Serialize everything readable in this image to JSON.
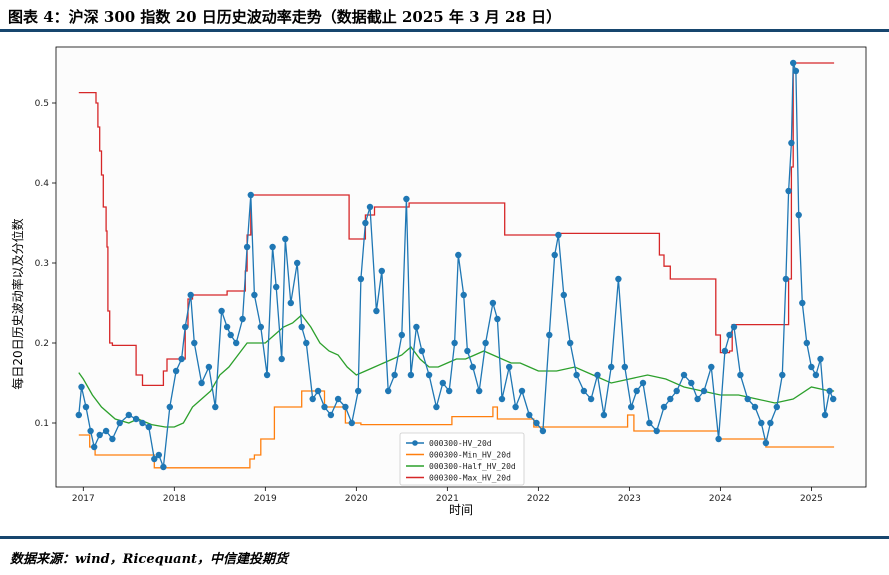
{
  "header": {
    "title": "图表 4：沪深 300 指数 20 日历史波动率走势（数据截止 2025 年 3 月 28 日）"
  },
  "footer": {
    "source": "数据来源：wind，Ricequant，中信建投期货"
  },
  "chart_data": {
    "type": "line",
    "xlabel": "时间",
    "ylabel": "每日20日历史波动率以及分位数",
    "x_ticks": [
      "2017",
      "2018",
      "2019",
      "2020",
      "2021",
      "2022",
      "2023",
      "2024",
      "2025"
    ],
    "y_ticks": [
      "0.1",
      "0.2",
      "0.3",
      "0.4",
      "0.5"
    ],
    "xlim": [
      2016.7,
      2025.6
    ],
    "ylim": [
      0.02,
      0.57
    ],
    "legend_position": "lower-center",
    "grid": false,
    "series": [
      {
        "name": "000300-HV_20d",
        "color": "#1f77b4",
        "marker": "circle",
        "x": [
          2016.95,
          2016.98,
          2017.03,
          2017.08,
          2017.12,
          2017.18,
          2017.25,
          2017.32,
          2017.4,
          2017.5,
          2017.58,
          2017.65,
          2017.72,
          2017.78,
          2017.83,
          2017.88,
          2017.95,
          2018.02,
          2018.08,
          2018.12,
          2018.18,
          2018.22,
          2018.3,
          2018.38,
          2018.45,
          2018.52,
          2018.58,
          2018.62,
          2018.68,
          2018.75,
          2018.8,
          2018.84,
          2018.88,
          2018.95,
          2019.02,
          2019.08,
          2019.12,
          2019.18,
          2019.22,
          2019.28,
          2019.35,
          2019.4,
          2019.45,
          2019.52,
          2019.58,
          2019.65,
          2019.72,
          2019.8,
          2019.88,
          2019.95,
          2020.02,
          2020.05,
          2020.1,
          2020.15,
          2020.22,
          2020.28,
          2020.35,
          2020.42,
          2020.5,
          2020.55,
          2020.6,
          2020.66,
          2020.72,
          2020.8,
          2020.88,
          2020.95,
          2021.02,
          2021.08,
          2021.12,
          2021.18,
          2021.22,
          2021.28,
          2021.35,
          2021.42,
          2021.5,
          2021.55,
          2021.6,
          2021.68,
          2021.75,
          2021.82,
          2021.9,
          2021.98,
          2022.05,
          2022.12,
          2022.18,
          2022.22,
          2022.28,
          2022.35,
          2022.42,
          2022.5,
          2022.58,
          2022.65,
          2022.72,
          2022.8,
          2022.88,
          2022.95,
          2023.02,
          2023.08,
          2023.15,
          2023.22,
          2023.3,
          2023.38,
          2023.45,
          2023.52,
          2023.6,
          2023.68,
          2023.75,
          2023.82,
          2023.9,
          2023.98,
          2024.05,
          2024.1,
          2024.15,
          2024.22,
          2024.3,
          2024.38,
          2024.45,
          2024.5,
          2024.55,
          2024.62,
          2024.68,
          2024.72,
          2024.75,
          2024.78,
          2024.8,
          2024.83,
          2024.86,
          2024.9,
          2024.95,
          2025.0,
          2025.05,
          2025.1,
          2025.15,
          2025.2,
          2025.24
        ],
        "y": [
          0.11,
          0.145,
          0.12,
          0.09,
          0.07,
          0.085,
          0.09,
          0.08,
          0.1,
          0.11,
          0.105,
          0.1,
          0.095,
          0.055,
          0.06,
          0.045,
          0.12,
          0.165,
          0.18,
          0.22,
          0.26,
          0.2,
          0.15,
          0.17,
          0.12,
          0.24,
          0.22,
          0.21,
          0.2,
          0.23,
          0.32,
          0.385,
          0.26,
          0.22,
          0.16,
          0.32,
          0.27,
          0.18,
          0.33,
          0.25,
          0.3,
          0.22,
          0.2,
          0.13,
          0.14,
          0.12,
          0.11,
          0.13,
          0.12,
          0.1,
          0.14,
          0.28,
          0.35,
          0.37,
          0.24,
          0.29,
          0.14,
          0.16,
          0.21,
          0.38,
          0.16,
          0.22,
          0.19,
          0.16,
          0.12,
          0.15,
          0.14,
          0.2,
          0.31,
          0.26,
          0.19,
          0.17,
          0.14,
          0.2,
          0.25,
          0.23,
          0.13,
          0.17,
          0.12,
          0.14,
          0.11,
          0.1,
          0.09,
          0.21,
          0.31,
          0.335,
          0.26,
          0.2,
          0.16,
          0.14,
          0.13,
          0.16,
          0.11,
          0.17,
          0.28,
          0.17,
          0.12,
          0.14,
          0.15,
          0.1,
          0.09,
          0.12,
          0.13,
          0.14,
          0.16,
          0.15,
          0.13,
          0.14,
          0.17,
          0.08,
          0.19,
          0.21,
          0.22,
          0.16,
          0.13,
          0.12,
          0.1,
          0.075,
          0.1,
          0.12,
          0.16,
          0.28,
          0.39,
          0.45,
          0.55,
          0.54,
          0.36,
          0.25,
          0.2,
          0.17,
          0.16,
          0.18,
          0.11,
          0.14,
          0.13
        ]
      },
      {
        "name": "000300-Min_HV_20d",
        "color": "#ff7f0e",
        "steps": [
          [
            2016.95,
            0.085
          ],
          [
            2017.07,
            0.07
          ],
          [
            2017.13,
            0.06
          ],
          [
            2017.75,
            0.06
          ],
          [
            2017.78,
            0.044
          ],
          [
            2018.8,
            0.044
          ],
          [
            2018.83,
            0.055
          ],
          [
            2018.88,
            0.06
          ],
          [
            2018.95,
            0.08
          ],
          [
            2019.1,
            0.12
          ],
          [
            2019.4,
            0.14
          ],
          [
            2019.65,
            0.12
          ],
          [
            2019.88,
            0.1
          ],
          [
            2020.0,
            0.1
          ],
          [
            2020.05,
            0.098
          ],
          [
            2021.0,
            0.098
          ],
          [
            2021.05,
            0.108
          ],
          [
            2021.45,
            0.108
          ],
          [
            2021.5,
            0.12
          ],
          [
            2021.55,
            0.105
          ],
          [
            2021.88,
            0.105
          ],
          [
            2021.95,
            0.095
          ],
          [
            2022.95,
            0.095
          ],
          [
            2022.98,
            0.11
          ],
          [
            2023.05,
            0.09
          ],
          [
            2023.98,
            0.08
          ],
          [
            2024.45,
            0.08
          ],
          [
            2024.5,
            0.07
          ],
          [
            2025.25,
            0.07
          ]
        ]
      },
      {
        "name": "000300-Half_HV_20d",
        "color": "#2ca02c",
        "x": [
          2016.95,
          2017.0,
          2017.1,
          2017.2,
          2017.35,
          2017.5,
          2017.6,
          2017.75,
          2017.9,
          2018.0,
          2018.1,
          2018.2,
          2018.3,
          2018.4,
          2018.5,
          2018.6,
          2018.7,
          2018.8,
          2018.9,
          2019.0,
          2019.1,
          2019.2,
          2019.3,
          2019.4,
          2019.5,
          2019.6,
          2019.7,
          2019.8,
          2019.9,
          2020.0,
          2020.1,
          2020.2,
          2020.3,
          2020.4,
          2020.5,
          2020.6,
          2020.7,
          2020.8,
          2020.9,
          2021.0,
          2021.1,
          2021.2,
          2021.3,
          2021.4,
          2021.5,
          2021.6,
          2021.7,
          2021.8,
          2021.9,
          2022.0,
          2022.2,
          2022.4,
          2022.6,
          2022.8,
          2023.0,
          2023.2,
          2023.4,
          2023.6,
          2023.8,
          2024.0,
          2024.2,
          2024.4,
          2024.6,
          2024.8,
          2025.0,
          2025.2,
          2025.25
        ],
        "y": [
          0.163,
          0.155,
          0.135,
          0.12,
          0.105,
          0.1,
          0.105,
          0.098,
          0.095,
          0.095,
          0.1,
          0.12,
          0.13,
          0.14,
          0.16,
          0.17,
          0.185,
          0.2,
          0.2,
          0.2,
          0.21,
          0.22,
          0.225,
          0.235,
          0.22,
          0.2,
          0.19,
          0.185,
          0.17,
          0.16,
          0.165,
          0.17,
          0.175,
          0.18,
          0.185,
          0.195,
          0.18,
          0.17,
          0.17,
          0.175,
          0.18,
          0.18,
          0.185,
          0.19,
          0.185,
          0.18,
          0.175,
          0.175,
          0.17,
          0.165,
          0.165,
          0.17,
          0.16,
          0.15,
          0.155,
          0.16,
          0.155,
          0.145,
          0.14,
          0.135,
          0.135,
          0.13,
          0.125,
          0.13,
          0.145,
          0.14,
          0.14
        ]
      },
      {
        "name": "000300-Max_HV_20d",
        "color": "#d62728",
        "steps": [
          [
            2016.95,
            0.513
          ],
          [
            2017.14,
            0.5
          ],
          [
            2017.16,
            0.47
          ],
          [
            2017.18,
            0.44
          ],
          [
            2017.2,
            0.41
          ],
          [
            2017.22,
            0.37
          ],
          [
            2017.25,
            0.34
          ],
          [
            2017.26,
            0.32
          ],
          [
            2017.27,
            0.24
          ],
          [
            2017.29,
            0.2
          ],
          [
            2017.32,
            0.197
          ],
          [
            2017.55,
            0.197
          ],
          [
            2017.58,
            0.16
          ],
          [
            2017.65,
            0.147
          ],
          [
            2017.85,
            0.147
          ],
          [
            2017.88,
            0.165
          ],
          [
            2017.92,
            0.18
          ],
          [
            2018.1,
            0.18
          ],
          [
            2018.12,
            0.22
          ],
          [
            2018.15,
            0.255
          ],
          [
            2018.2,
            0.26
          ],
          [
            2018.55,
            0.26
          ],
          [
            2018.58,
            0.265
          ],
          [
            2018.75,
            0.265
          ],
          [
            2018.78,
            0.29
          ],
          [
            2018.8,
            0.335
          ],
          [
            2018.84,
            0.385
          ],
          [
            2019.9,
            0.385
          ],
          [
            2019.92,
            0.33
          ],
          [
            2020.05,
            0.33
          ],
          [
            2020.1,
            0.36
          ],
          [
            2020.2,
            0.37
          ],
          [
            2020.55,
            0.37
          ],
          [
            2020.58,
            0.375
          ],
          [
            2021.6,
            0.375
          ],
          [
            2021.63,
            0.335
          ],
          [
            2022.2,
            0.335
          ],
          [
            2022.24,
            0.337
          ],
          [
            2023.3,
            0.337
          ],
          [
            2023.33,
            0.31
          ],
          [
            2023.38,
            0.296
          ],
          [
            2023.45,
            0.28
          ],
          [
            2023.92,
            0.28
          ],
          [
            2023.95,
            0.21
          ],
          [
            2024.0,
            0.188
          ],
          [
            2024.1,
            0.19
          ],
          [
            2024.13,
            0.223
          ],
          [
            2024.72,
            0.223
          ],
          [
            2024.75,
            0.28
          ],
          [
            2024.78,
            0.42
          ],
          [
            2024.8,
            0.55
          ],
          [
            2025.25,
            0.55
          ]
        ]
      }
    ]
  }
}
